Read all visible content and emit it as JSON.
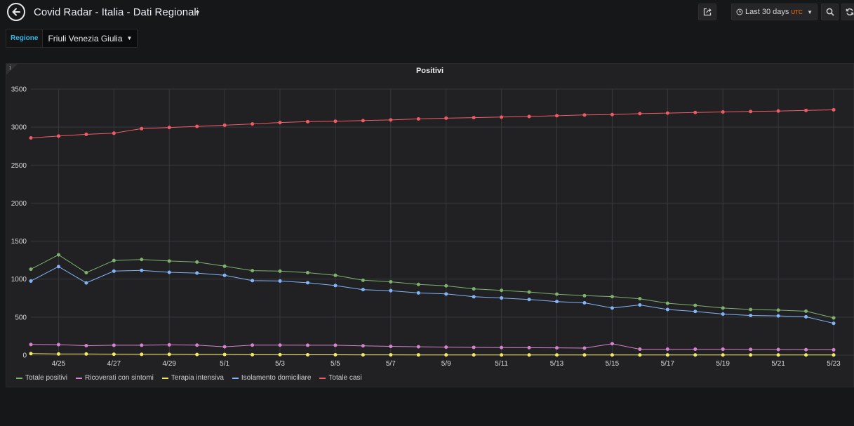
{
  "header": {
    "title": "Covid Radar - Italia - Dati Regionali",
    "time_range": "Last 30 days",
    "timezone": "UTC"
  },
  "variable": {
    "label": "Regione",
    "value": "Friuli Venezia Giulia"
  },
  "panel": {
    "info": "i",
    "title": "Positivi"
  },
  "colors": {
    "background": "#161719",
    "panel": "#212124",
    "grid": "#37383c",
    "variable_label": "#33b5e5",
    "utc": "#ff7a19"
  },
  "chart_data": {
    "type": "line",
    "title": "Positivi",
    "x": [
      "4/24",
      "4/25",
      "4/26",
      "4/27",
      "4/28",
      "4/29",
      "4/30",
      "5/1",
      "5/2",
      "5/3",
      "5/4",
      "5/5",
      "5/6",
      "5/7",
      "5/8",
      "5/9",
      "5/10",
      "5/11",
      "5/12",
      "5/13",
      "5/14",
      "5/15",
      "5/16",
      "5/17",
      "5/18",
      "5/19",
      "5/20",
      "5/21",
      "5/22",
      "5/23"
    ],
    "x_ticks": [
      "4/25",
      "4/27",
      "4/29",
      "5/1",
      "5/3",
      "5/5",
      "5/7",
      "5/9",
      "5/11",
      "5/13",
      "5/15",
      "5/17",
      "5/19",
      "5/21",
      "5/23"
    ],
    "ylim": [
      0,
      3500
    ],
    "y_ticks": [
      "0",
      "500",
      "1000",
      "1500",
      "2000",
      "2500",
      "3000",
      "3500"
    ],
    "grid": true,
    "legend_position": "bottom-left",
    "series": [
      {
        "name": "Totale positivi",
        "color": "#7eb26d",
        "values": [
          1130,
          1320,
          1085,
          1245,
          1258,
          1238,
          1225,
          1170,
          1112,
          1105,
          1085,
          1050,
          985,
          965,
          930,
          912,
          872,
          852,
          830,
          802,
          782,
          770,
          742,
          682,
          655,
          620,
          600,
          592,
          578,
          490
        ]
      },
      {
        "name": "Ricoverati con sintomi",
        "color": "#d683ce",
        "values": [
          140,
          138,
          125,
          130,
          130,
          135,
          132,
          110,
          132,
          132,
          130,
          130,
          122,
          115,
          110,
          105,
          102,
          100,
          98,
          96,
          92,
          150,
          78,
          78,
          78,
          78,
          75,
          74,
          72,
          70
        ]
      },
      {
        "name": "Terapia intensiva",
        "color": "#f4e866",
        "values": [
          20,
          15,
          15,
          12,
          10,
          10,
          8,
          8,
          6,
          6,
          5,
          5,
          4,
          4,
          3,
          3,
          3,
          2,
          2,
          2,
          2,
          2,
          2,
          2,
          2,
          2,
          2,
          2,
          2,
          2
        ]
      },
      {
        "name": "Isolamento domiciliare",
        "color": "#82b5f8",
        "values": [
          975,
          1165,
          950,
          1105,
          1115,
          1090,
          1080,
          1050,
          980,
          975,
          952,
          915,
          862,
          848,
          818,
          805,
          768,
          752,
          732,
          705,
          688,
          620,
          660,
          600,
          575,
          540,
          522,
          516,
          504,
          418
        ]
      },
      {
        "name": "Totale casi",
        "color": "#f05b66",
        "values": [
          2858,
          2882,
          2905,
          2920,
          2980,
          2995,
          3010,
          3025,
          3042,
          3060,
          3072,
          3078,
          3086,
          3095,
          3108,
          3118,
          3125,
          3132,
          3140,
          3150,
          3160,
          3165,
          3178,
          3185,
          3193,
          3200,
          3206,
          3212,
          3220,
          3228
        ]
      }
    ]
  }
}
